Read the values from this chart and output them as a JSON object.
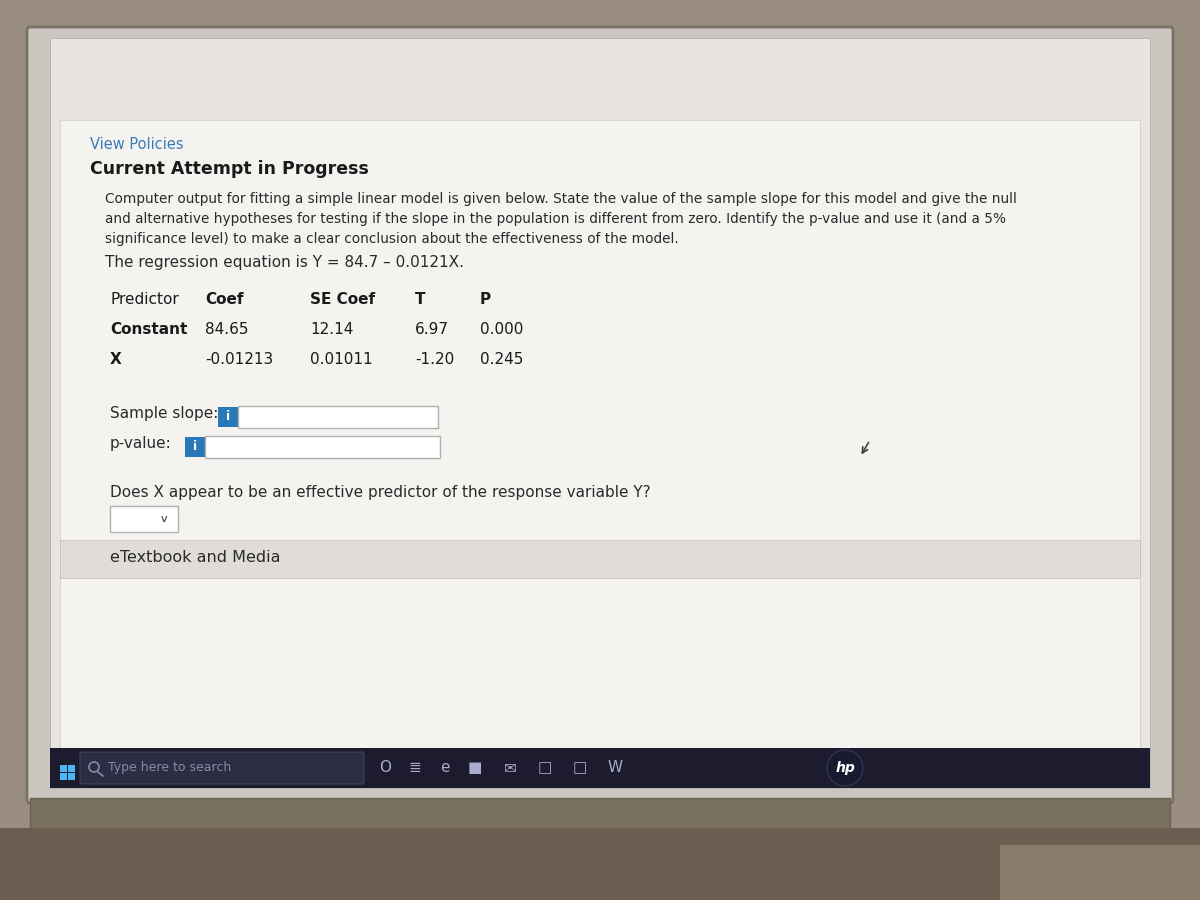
{
  "bg_outer": "#9a8e82",
  "bg_screen": "#cbc7c0",
  "bg_content": "#e8e5e0",
  "bg_white": "#f5f3f0",
  "title_view_policies": "View Policies",
  "title_current": "Current Attempt in Progress",
  "para_line1": "Computer output for fitting a simple linear model is given below. State the value of the sample slope for this model and give the null",
  "para_line2": "and alternative hypotheses for testing if the slope in the population is different from zero. Identify the p-value and use it (and a 5%",
  "para_line3": "significance level) to make a clear conclusion about the effectiveness of the model.",
  "regression_eq": "The regression equation is Y = 84.7 – 0.0121X.",
  "col_headers": [
    "Predictor",
    "Coef",
    "SE Coef",
    "T",
    "P"
  ],
  "row1": [
    "Constant",
    "84.65",
    "12.14",
    "6.97",
    "0.000"
  ],
  "row2": [
    "X",
    "-0.01213",
    "0.01011",
    "-1.20",
    "0.245"
  ],
  "sample_slope_label": "Sample slope:",
  "pvalue_label": "p-value:",
  "info_color": "#2979b8",
  "does_x_text": "Does X appear to be an effective predictor of the response variable Y?",
  "etextbook_text": "eTextbook and Media",
  "taskbar_text": "Type here to search",
  "taskbar_bg": "#1c1c2e",
  "color_link": "#3a7bb5",
  "color_bold": "#1a1a1a",
  "color_normal": "#2a2a2a",
  "input_bg": "#ffffff",
  "input_border": "#b0b0b0"
}
